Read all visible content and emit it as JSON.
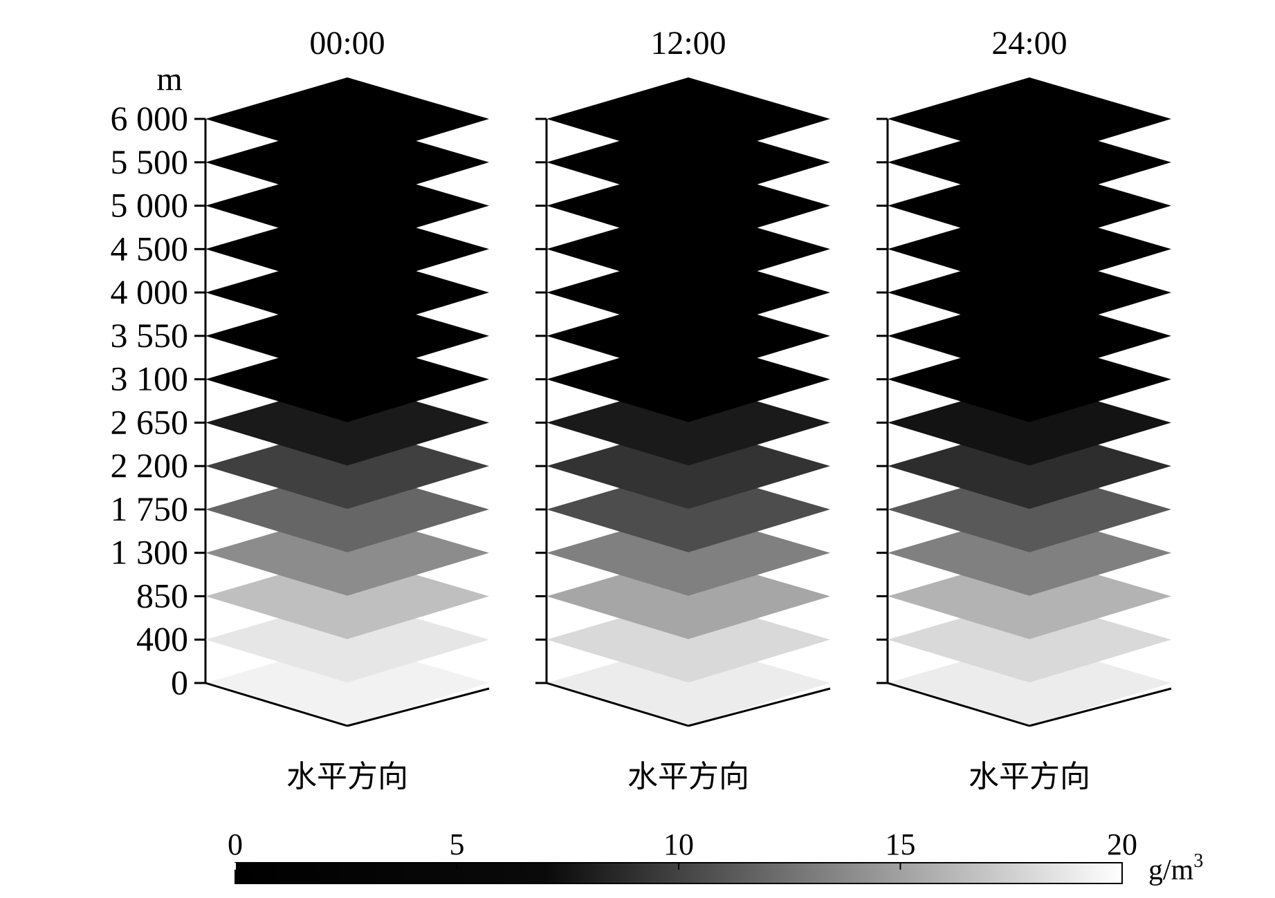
{
  "chart_data": {
    "type": "heatmap",
    "title": "",
    "y_unit": "m",
    "y_levels": [
      0,
      400,
      850,
      1300,
      1750,
      2200,
      2650,
      3100,
      3550,
      4000,
      4500,
      5000,
      5500,
      6000
    ],
    "y_tick_labels": [
      "0",
      "400",
      "850",
      "1 300",
      "1 750",
      "2 200",
      "2 650",
      "3 100",
      "3 550",
      "4 000",
      "4 500",
      "5 000",
      "5 500",
      "6 000"
    ],
    "panels": [
      {
        "label": "00:00",
        "xlabel": "水平方向",
        "values": [
          19,
          18,
          15,
          11,
          8,
          5,
          2,
          0,
          0,
          0,
          0,
          0,
          0,
          0
        ]
      },
      {
        "label": "12:00",
        "xlabel": "水平方向",
        "values": [
          18.5,
          17,
          13,
          10,
          6,
          4,
          2,
          0,
          0,
          0,
          0,
          0,
          0,
          0
        ]
      },
      {
        "label": "24:00",
        "xlabel": "水平方向",
        "values": [
          18.5,
          17,
          14,
          10,
          7,
          3.5,
          1.5,
          0,
          0,
          0,
          0,
          0,
          0,
          0
        ]
      }
    ],
    "colorbar": {
      "range": [
        0,
        20
      ],
      "ticks": [
        0,
        5,
        10,
        15,
        20
      ],
      "tick_labels": [
        "0",
        "5",
        "10",
        "15",
        "20"
      ],
      "unit": "g/m",
      "unit_superscript": "3",
      "colormap": "grayscale-black-to-white"
    }
  }
}
